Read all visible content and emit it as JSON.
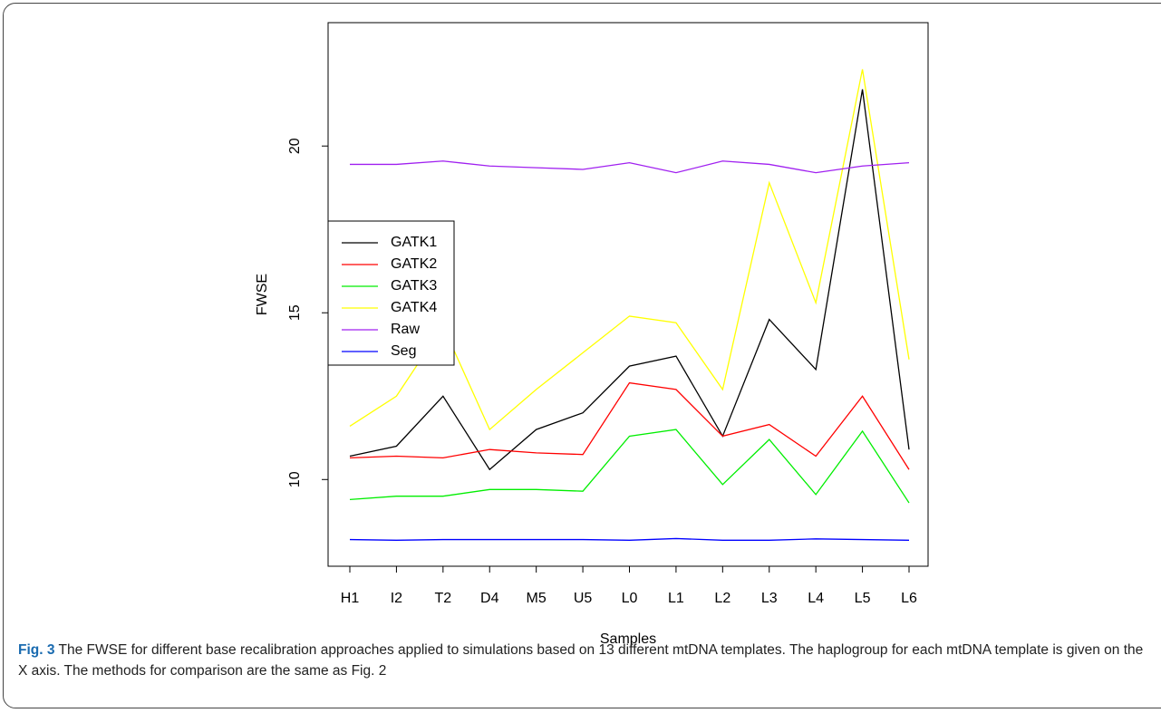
{
  "chart_data": {
    "type": "line",
    "categories": [
      "H1",
      "I2",
      "T2",
      "D4",
      "M5",
      "U5",
      "L0",
      "L1",
      "L2",
      "L3",
      "L4",
      "L5",
      "L6"
    ],
    "xlabel": "Samples",
    "ylabel": "FWSE",
    "ylim": [
      7.4,
      23.7
    ],
    "yticks": [
      10,
      15,
      20
    ],
    "legend": "left",
    "series": [
      {
        "name": "GATK1",
        "color": "#000000",
        "values": [
          10.7,
          11.0,
          12.5,
          10.3,
          11.5,
          12.0,
          13.4,
          13.7,
          11.3,
          14.8,
          13.3,
          21.7,
          10.9
        ]
      },
      {
        "name": "GATK2",
        "color": "#ff0000",
        "values": [
          10.65,
          10.7,
          10.65,
          10.9,
          10.8,
          10.75,
          12.9,
          12.7,
          11.3,
          11.65,
          10.7,
          12.5,
          10.3
        ]
      },
      {
        "name": "GATK3",
        "color": "#00ee00",
        "values": [
          9.4,
          9.5,
          9.5,
          9.7,
          9.7,
          9.65,
          11.3,
          11.5,
          9.85,
          11.2,
          9.55,
          11.45,
          9.3
        ]
      },
      {
        "name": "GATK4",
        "color": "#ffff00",
        "values": [
          11.6,
          12.5,
          14.6,
          11.5,
          12.7,
          13.8,
          14.9,
          14.7,
          12.7,
          18.9,
          15.3,
          22.3,
          13.6
        ]
      },
      {
        "name": "Raw",
        "color": "#a020f0",
        "values": [
          19.45,
          19.45,
          19.55,
          19.4,
          19.35,
          19.3,
          19.5,
          19.2,
          19.55,
          19.45,
          19.2,
          19.4,
          19.5
        ]
      },
      {
        "name": "Seg",
        "color": "#0000ff",
        "values": [
          8.2,
          8.18,
          8.2,
          8.2,
          8.2,
          8.2,
          8.18,
          8.23,
          8.18,
          8.18,
          8.22,
          8.2,
          8.18
        ]
      }
    ]
  },
  "caption": {
    "label": "Fig. 3",
    "text": "The FWSE for different base recalibration approaches applied to simulations based on 13 different mtDNA templates. The haplogroup for each mtDNA template is given on the X axis. The methods for comparison are the same as Fig. 2"
  }
}
